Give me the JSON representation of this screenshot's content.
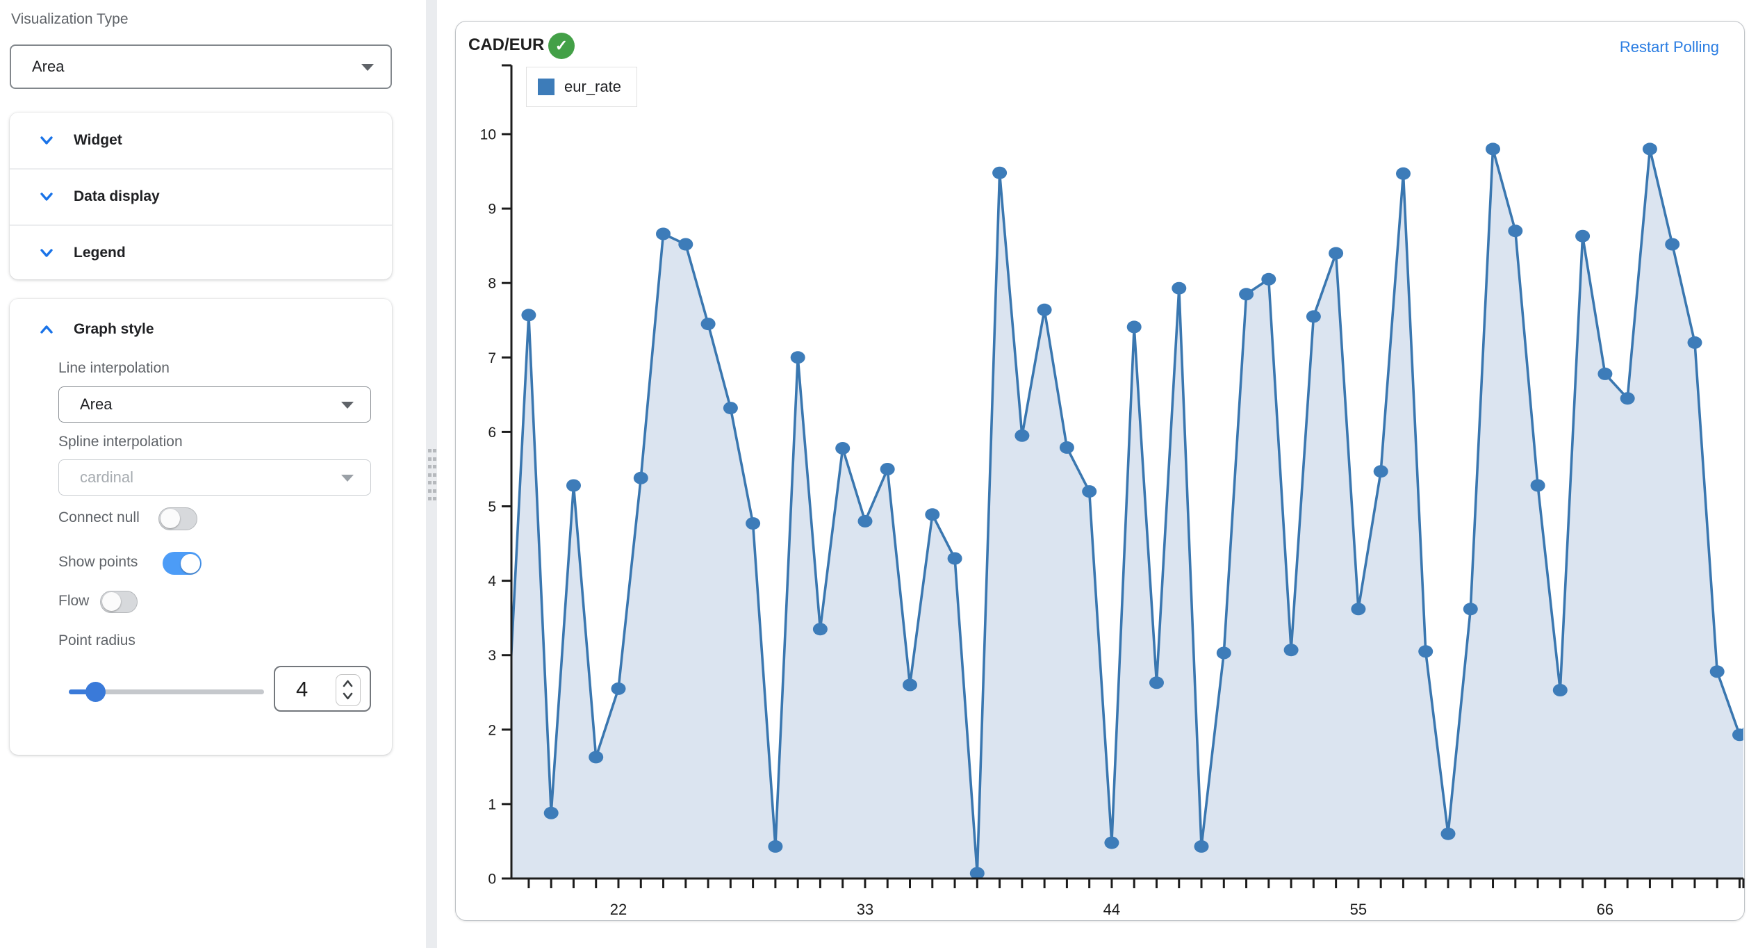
{
  "sidebar": {
    "visualization_type_label": "Visualization Type",
    "visualization_type_value": "Area",
    "sections": [
      {
        "label": "Widget"
      },
      {
        "label": "Data display"
      },
      {
        "label": "Legend"
      }
    ],
    "graph_style": {
      "title": "Graph style",
      "line_interpolation_label": "Line interpolation",
      "line_interpolation_value": "Area",
      "spline_interpolation_label": "Spline interpolation",
      "spline_interpolation_value": "cardinal",
      "connect_null_label": "Connect null",
      "connect_null_on": false,
      "show_points_label": "Show points",
      "show_points_on": true,
      "flow_label": "Flow",
      "flow_on": false,
      "point_radius_label": "Point radius",
      "point_radius_value": "4"
    }
  },
  "chart_card": {
    "title": "CAD/EUR",
    "status_icon": "check-circle-green",
    "action_link": "Restart Polling",
    "legend": {
      "label": "eur_rate",
      "color": "#3d7cb9"
    }
  },
  "icons": {
    "check": "✓"
  },
  "chart_data": {
    "type": "area",
    "title": "CAD/EUR",
    "series": [
      {
        "name": "eur_rate",
        "x_start": 18,
        "values": [
          7.57,
          0.88,
          5.28,
          1.63,
          2.55,
          5.38,
          8.66,
          8.52,
          7.45,
          6.32,
          4.77,
          0.43,
          7.0,
          3.35,
          5.78,
          4.8,
          5.5,
          2.6,
          4.89,
          4.3,
          0.07,
          9.48,
          5.95,
          7.64,
          5.79,
          5.2,
          0.48,
          7.41,
          2.63,
          7.93,
          0.43,
          3.03,
          7.85,
          8.05,
          3.07,
          7.55,
          8.4,
          3.62,
          5.47,
          9.47,
          3.05,
          0.6,
          3.62,
          9.8,
          8.7,
          5.28,
          2.53,
          8.63,
          6.78,
          6.45,
          9.8,
          8.52,
          7.2,
          2.78,
          1.93
        ]
      }
    ],
    "edge_left": {
      "x": 17,
      "value": 1.7
    },
    "edge_right": {
      "x": 73,
      "value": 2.35
    },
    "xlabel": "",
    "ylabel": "",
    "ylim": [
      0,
      10
    ],
    "y_ticks": [
      0,
      1,
      2,
      3,
      4,
      5,
      6,
      7,
      8,
      9,
      10
    ],
    "x_tick_labels": [
      22,
      33,
      44,
      55,
      66
    ],
    "x_minor_tick_step": 1,
    "grid": false,
    "legend_position": "top-left",
    "colors": {
      "line": "#3a77b0",
      "fill": "#dbe4f0",
      "marker": "#3d7cb9",
      "axis": "#1c1c1c"
    }
  }
}
